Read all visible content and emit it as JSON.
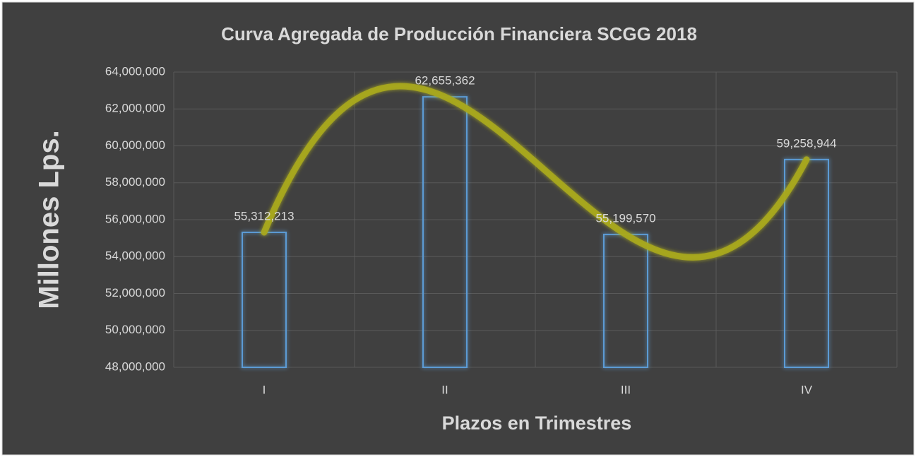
{
  "chart_data": {
    "type": "bar",
    "title": "Curva Agregada de Producción Financiera SCGG 2018",
    "x_label": "Plazos en Trimestres",
    "y_label": "Millones Lps.",
    "categories": [
      "I",
      "II",
      "III",
      "IV"
    ],
    "values": [
      55312213,
      62655362,
      55199570,
      59258944
    ],
    "value_labels": [
      "55,312,213",
      "62,655,362",
      "55,199,570",
      "59,258,944"
    ],
    "color": "#5b9bd5",
    "trendline": {
      "type": "polynomial",
      "color": "#a9a91f"
    },
    "ylim": [
      48000000,
      64000000
    ],
    "yticks": [
      {
        "value": 48000000,
        "label": "48,000,000"
      },
      {
        "value": 50000000,
        "label": "50,000,000"
      },
      {
        "value": 52000000,
        "label": "52,000,000"
      },
      {
        "value": 54000000,
        "label": "54,000,000"
      },
      {
        "value": 56000000,
        "label": "56,000,000"
      },
      {
        "value": 58000000,
        "label": "58,000,000"
      },
      {
        "value": 60000000,
        "label": "60,000,000"
      },
      {
        "value": 62000000,
        "label": "62,000,000"
      },
      {
        "value": 64000000,
        "label": "64,000,000"
      }
    ],
    "grid": true
  }
}
